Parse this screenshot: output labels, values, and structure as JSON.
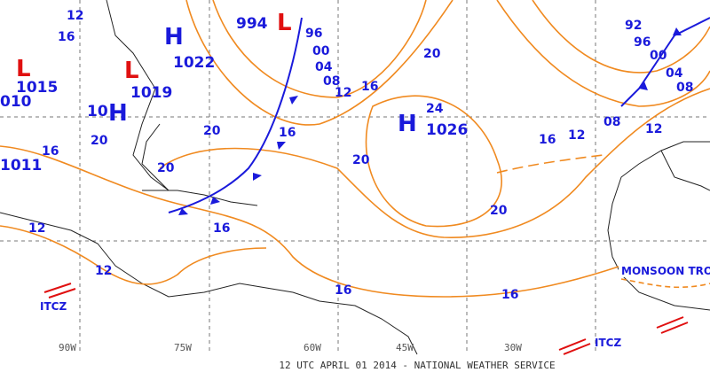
{
  "footer": "12 UTC APRIL 01 2014 - NATIONAL WEATHER SERVICE",
  "longitudes": [
    "90W",
    "75W",
    "60W",
    "45W",
    "30W"
  ],
  "pressure_centers": [
    {
      "symbol": "H",
      "value": "1022"
    },
    {
      "symbol": "L",
      "value": "1019"
    },
    {
      "symbol": "L",
      "value": "1015"
    },
    {
      "symbol": "L",
      "value": "994"
    },
    {
      "symbol": "H",
      "value": "1026"
    },
    {
      "symbol": "H",
      "value": "1011"
    }
  ],
  "isobar_labels": [
    "12",
    "16",
    "96",
    "00",
    "04",
    "08",
    "12",
    "16",
    "20",
    "20",
    "16",
    "20",
    "12",
    "16",
    "12",
    "16",
    "16",
    "20",
    "24",
    "20",
    "20",
    "16",
    "12",
    "08",
    "12",
    "92",
    "96",
    "00",
    "04",
    "08",
    "010",
    "10",
    "16"
  ],
  "features": [
    "ITCZ",
    "ITCZ",
    "MONSOON TROF"
  ]
}
